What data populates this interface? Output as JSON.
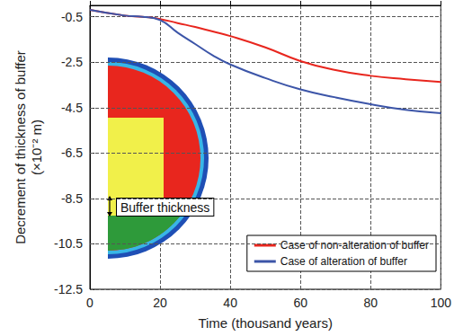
{
  "chart_data": {
    "type": "line",
    "x_label": "Time (thousand years)",
    "y_label": "Decrement of thickness of buffer\n(×10⁻² m)",
    "x": [
      0,
      10,
      15,
      20,
      25,
      30,
      35,
      40,
      50,
      60,
      70,
      80,
      90,
      100
    ],
    "series": [
      {
        "name": "Case of non-alteration of buffer",
        "color": "#e8261e",
        "values": [
          -0.2,
          -0.45,
          -0.5,
          -0.6,
          -0.78,
          -0.95,
          -1.15,
          -1.35,
          -1.85,
          -2.45,
          -2.85,
          -3.1,
          -3.25,
          -3.37
        ]
      },
      {
        "name": "Case of alteration of buffer",
        "color": "#3c55a8",
        "values": [
          -0.2,
          -0.45,
          -0.5,
          -0.65,
          -1.2,
          -1.7,
          -2.2,
          -2.6,
          -3.2,
          -3.7,
          -4.05,
          -4.35,
          -4.6,
          -4.75
        ]
      }
    ],
    "xlim": [
      0,
      100
    ],
    "xticks": [
      0,
      20,
      40,
      60,
      80,
      100
    ],
    "ylim": [
      -12.5,
      0
    ],
    "yticks": [
      -12.5,
      -10.5,
      -8.5,
      -6.5,
      -4.5,
      -2.5,
      -0.5
    ],
    "grid": true,
    "legend": "lower right",
    "annotations": [
      "Buffer thickness"
    ]
  }
}
